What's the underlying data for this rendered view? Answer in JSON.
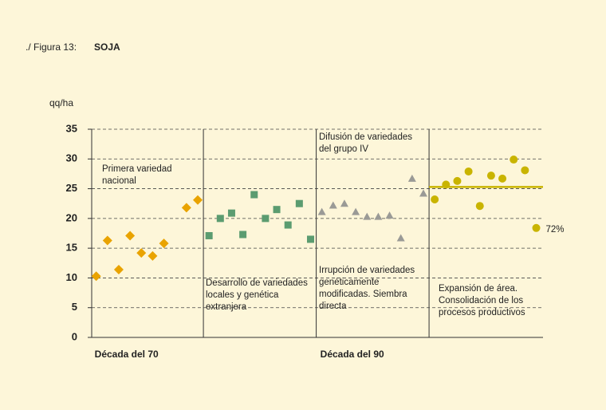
{
  "chart_data": {
    "type": "scatter",
    "title_prefix": "./ Figura 13:",
    "title": "SOJA",
    "y_label": "qq/ha",
    "xlim": [
      0.6,
      40.6
    ],
    "ylim": [
      0,
      35
    ],
    "yticks": [
      0,
      5,
      10,
      15,
      20,
      25,
      30,
      35
    ],
    "grid": true,
    "period_labels": [
      {
        "text": "Década del 70",
        "x": 1
      },
      {
        "text": "Década del 90",
        "x": 21
      }
    ],
    "dividers": [
      10.5,
      20.5,
      30.5
    ],
    "reference_line": {
      "value": 25.3,
      "from": 30.5,
      "color": "#c9b400"
    },
    "series": [
      {
        "name": null,
        "marker": "diamond",
        "color": "#e9a300",
        "x": [
          1,
          2,
          3,
          4,
          5,
          6,
          7,
          9,
          10
        ],
        "values": [
          10.3,
          16.3,
          11.4,
          17.1,
          14.2,
          13.7,
          15.8,
          21.8,
          23.1
        ]
      },
      {
        "name": null,
        "marker": "square",
        "color": "#5b9c70",
        "x": [
          11,
          12,
          13,
          14,
          15,
          16,
          17,
          18,
          19,
          20
        ],
        "values": [
          17.1,
          20,
          20.9,
          17.3,
          24,
          20,
          21.5,
          18.9,
          22.5,
          16.5
        ]
      },
      {
        "name": null,
        "marker": "triangle",
        "color": "#9a9a96",
        "x": [
          21,
          22,
          23,
          24,
          25,
          26,
          27,
          28,
          29,
          30
        ],
        "values": [
          21.1,
          22.2,
          22.5,
          21.1,
          20.3,
          20.3,
          20.5,
          16.7,
          26.7,
          24.2
        ]
      },
      {
        "name": null,
        "marker": "circle",
        "color": "#c9b400",
        "x": [
          31,
          32,
          33,
          34,
          35,
          36,
          37,
          38,
          39,
          40
        ],
        "values": [
          23.2,
          25.7,
          26.3,
          27.9,
          22.1,
          27.2,
          26.7,
          29.9,
          28.1,
          18.4
        ]
      }
    ],
    "point_label": {
      "text": "72%",
      "series": 3,
      "index": 9
    },
    "annotations": [
      {
        "lines": [
          "Primera variedad",
          "nacional"
        ]
      },
      {
        "lines": [
          "Desarrollo de variedades",
          "locales y genética",
          "extranjera"
        ]
      },
      {
        "lines": [
          "Difusión de variedades",
          "del grupo IV"
        ]
      },
      {
        "lines": [
          "Irrupción de variedades",
          "genéticamente",
          "modificadas. Siembra",
          "directa"
        ]
      },
      {
        "lines": [
          "Expansión de área.",
          "Consolidación de los",
          "procesos productivos"
        ]
      }
    ]
  }
}
